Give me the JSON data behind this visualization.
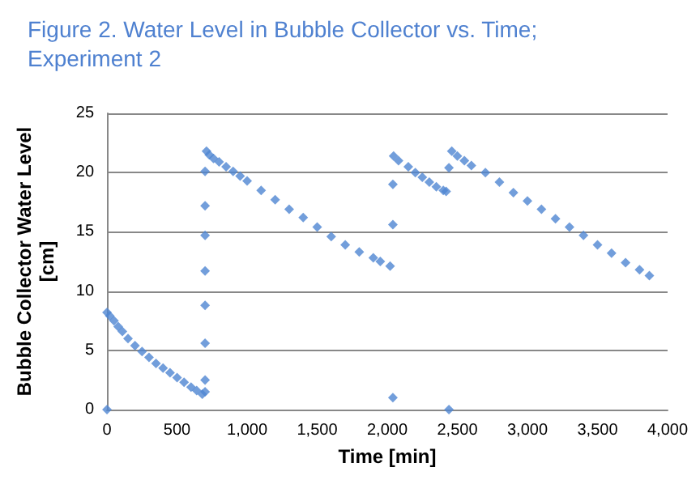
{
  "chart_data": {
    "type": "scatter",
    "title": "Figure 2. Water Level in Bubble Collector vs. Time;\nExperiment 2",
    "xlabel": "Time [min]",
    "ylabel": "Bubble Collector Water Level\n[cm]",
    "x": [
      0,
      0,
      20,
      50,
      80,
      110,
      150,
      200,
      250,
      300,
      350,
      400,
      450,
      500,
      550,
      600,
      640,
      680,
      700,
      700,
      700,
      700,
      700,
      700,
      700,
      700,
      710,
      730,
      760,
      800,
      850,
      900,
      950,
      1000,
      1100,
      1200,
      1300,
      1400,
      1500,
      1600,
      1700,
      1800,
      1900,
      1950,
      2020,
      2040,
      2040,
      2040,
      2045,
      2080,
      2150,
      2200,
      2250,
      2300,
      2350,
      2400,
      2420,
      2440,
      2440,
      2460,
      2500,
      2550,
      2600,
      2700,
      2800,
      2900,
      3000,
      3100,
      3200,
      3300,
      3400,
      3500,
      3600,
      3700,
      3800,
      3870
    ],
    "series": [
      {
        "color": "#4f86d2",
        "values": [
          0,
          8.2,
          7.9,
          7.5,
          7.0,
          6.6,
          6.0,
          5.4,
          4.9,
          4.4,
          3.9,
          3.5,
          3.1,
          2.7,
          2.3,
          1.9,
          1.6,
          1.3,
          1.5,
          2.5,
          5.6,
          8.8,
          11.7,
          14.7,
          17.2,
          20.1,
          21.8,
          21.5,
          21.2,
          20.9,
          20.5,
          20.1,
          19.7,
          19.3,
          18.5,
          17.7,
          16.9,
          16.2,
          15.4,
          14.6,
          13.9,
          13.3,
          12.8,
          12.5,
          12.1,
          1.0,
          15.6,
          19.0,
          21.4,
          21.0,
          20.5,
          20.0,
          19.6,
          19.2,
          18.8,
          18.5,
          18.4,
          0,
          20.4,
          21.8,
          21.4,
          21.0,
          20.6,
          20.0,
          19.2,
          18.3,
          17.6,
          16.9,
          16.1,
          15.4,
          14.7,
          13.9,
          13.2,
          12.4,
          11.8,
          11.3
        ]
      }
    ],
    "xlim": [
      0,
      4000
    ],
    "xticks": [
      {
        "value": 0,
        "label": "0"
      },
      {
        "value": 500,
        "label": "500"
      },
      {
        "value": 1000,
        "label": "1,000"
      },
      {
        "value": 1500,
        "label": "1,500"
      },
      {
        "value": 2000,
        "label": "2,000"
      },
      {
        "value": 2500,
        "label": "2,500"
      },
      {
        "value": 3000,
        "label": "3,000"
      },
      {
        "value": 3500,
        "label": "3,500"
      },
      {
        "value": 4000,
        "label": "4,000"
      }
    ],
    "ylim": [
      0,
      25
    ],
    "yticks": [
      0,
      5,
      10,
      15,
      20,
      25
    ],
    "grid": "y",
    "marker": "diamond"
  }
}
